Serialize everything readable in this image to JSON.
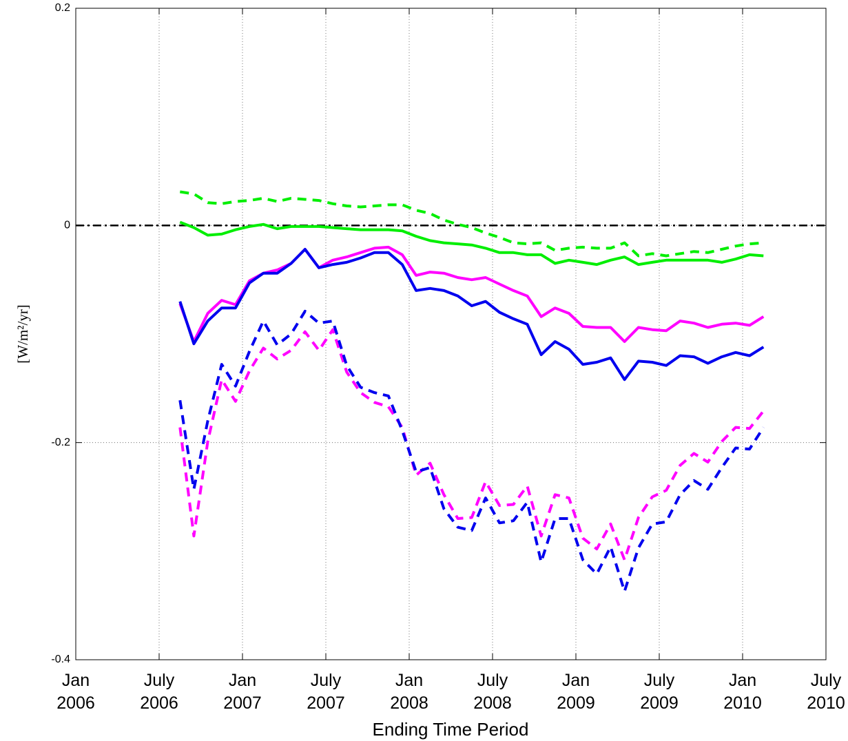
{
  "chart_data": {
    "type": "line",
    "x_label": "Ending Time Period",
    "y_label": "[W/m²/yr]",
    "xlim": [
      "2006-01",
      "2010-07"
    ],
    "xticks": [
      {
        "value": "2006-01",
        "label": [
          "Jan",
          "2006"
        ]
      },
      {
        "value": "2006-07",
        "label": [
          "July",
          "2006"
        ]
      },
      {
        "value": "2007-01",
        "label": [
          "Jan",
          "2007"
        ]
      },
      {
        "value": "2007-07",
        "label": [
          "July",
          "2007"
        ]
      },
      {
        "value": "2008-01",
        "label": [
          "Jan",
          "2008"
        ]
      },
      {
        "value": "2008-07",
        "label": [
          "July",
          "2008"
        ]
      },
      {
        "value": "2009-01",
        "label": [
          "Jan",
          "2009"
        ]
      },
      {
        "value": "2009-07",
        "label": [
          "July",
          "2009"
        ]
      },
      {
        "value": "2010-01",
        "label": [
          "Jan",
          "2010"
        ]
      },
      {
        "value": "2010-07",
        "label": [
          "July",
          "2010"
        ]
      }
    ],
    "ylim": [
      -0.4,
      0.2
    ],
    "yticks": [
      -0.4,
      -0.2,
      0,
      0.2
    ],
    "grid": true,
    "reference_line": {
      "value": 0,
      "color": "#000000",
      "style": "dashdot"
    },
    "x": [
      "2006-08",
      "2006-09",
      "2006-10",
      "2006-11",
      "2006-12",
      "2007-01",
      "2007-02",
      "2007-03",
      "2007-04",
      "2007-05",
      "2007-06",
      "2007-07",
      "2007-08",
      "2007-09",
      "2007-10",
      "2007-11",
      "2007-12",
      "2008-01",
      "2008-02",
      "2008-03",
      "2008-04",
      "2008-05",
      "2008-06",
      "2008-07",
      "2008-08",
      "2008-09",
      "2008-10",
      "2008-11",
      "2008-12",
      "2009-01",
      "2009-02",
      "2009-03",
      "2009-04",
      "2009-05",
      "2009-06",
      "2009-07",
      "2009-08",
      "2009-09",
      "2009-10",
      "2009-11",
      "2009-12",
      "2010-01",
      "2010-02"
    ],
    "series": [
      {
        "color": "#00ee00",
        "dash": "solid",
        "values": [
          0.003,
          -0.002,
          -0.009,
          -0.008,
          -0.004,
          -0.001,
          0.001,
          -0.003,
          -0.001,
          -0.001,
          -0.001,
          -0.002,
          -0.003,
          -0.004,
          -0.004,
          -0.004,
          -0.005,
          -0.01,
          -0.014,
          -0.016,
          -0.017,
          -0.018,
          -0.021,
          -0.025,
          -0.025,
          -0.027,
          -0.027,
          -0.035,
          -0.032,
          -0.034,
          -0.036,
          -0.032,
          -0.029,
          -0.036,
          -0.034,
          -0.032,
          -0.032,
          -0.032,
          -0.032,
          -0.034,
          -0.031,
          -0.027,
          -0.028
        ]
      },
      {
        "color": "#00ee00",
        "dash": "dashed",
        "values": [
          0.031,
          0.029,
          0.021,
          0.02,
          0.022,
          0.023,
          0.025,
          0.022,
          0.025,
          0.024,
          0.023,
          0.02,
          0.018,
          0.017,
          0.018,
          0.019,
          0.019,
          0.014,
          0.011,
          0.005,
          0.001,
          -0.002,
          -0.007,
          -0.011,
          -0.016,
          -0.017,
          -0.016,
          -0.023,
          -0.021,
          -0.02,
          -0.021,
          -0.021,
          -0.016,
          -0.028,
          -0.026,
          -0.028,
          -0.026,
          -0.024,
          -0.025,
          -0.022,
          -0.019,
          -0.017,
          -0.016
        ]
      },
      {
        "color": "#ff00ff",
        "dash": "solid",
        "values": [
          -0.072,
          -0.107,
          -0.081,
          -0.069,
          -0.073,
          -0.051,
          -0.044,
          -0.041,
          -0.035,
          -0.022,
          -0.039,
          -0.032,
          -0.029,
          -0.025,
          -0.021,
          -0.02,
          -0.027,
          -0.046,
          -0.043,
          -0.044,
          -0.048,
          -0.05,
          -0.048,
          -0.054,
          -0.06,
          -0.065,
          -0.084,
          -0.076,
          -0.081,
          -0.093,
          -0.094,
          -0.094,
          -0.107,
          -0.094,
          -0.096,
          -0.097,
          -0.088,
          -0.09,
          -0.094,
          -0.091,
          -0.09,
          -0.092,
          -0.084
        ]
      },
      {
        "color": "#0000ee",
        "dash": "solid",
        "values": [
          -0.07,
          -0.109,
          -0.088,
          -0.076,
          -0.076,
          -0.053,
          -0.044,
          -0.044,
          -0.035,
          -0.022,
          -0.039,
          -0.036,
          -0.034,
          -0.03,
          -0.025,
          -0.025,
          -0.036,
          -0.06,
          -0.058,
          -0.06,
          -0.065,
          -0.074,
          -0.07,
          -0.08,
          -0.086,
          -0.091,
          -0.119,
          -0.107,
          -0.114,
          -0.128,
          -0.126,
          -0.122,
          -0.142,
          -0.125,
          -0.126,
          -0.129,
          -0.12,
          -0.121,
          -0.127,
          -0.121,
          -0.117,
          -0.12,
          -0.112
        ]
      },
      {
        "color": "#ff00ff",
        "dash": "dashed",
        "values": [
          -0.186,
          -0.286,
          -0.199,
          -0.142,
          -0.162,
          -0.134,
          -0.113,
          -0.123,
          -0.115,
          -0.098,
          -0.115,
          -0.096,
          -0.135,
          -0.154,
          -0.163,
          -0.167,
          -0.186,
          -0.23,
          -0.219,
          -0.248,
          -0.27,
          -0.269,
          -0.236,
          -0.258,
          -0.257,
          -0.24,
          -0.286,
          -0.248,
          -0.251,
          -0.288,
          -0.298,
          -0.275,
          -0.308,
          -0.269,
          -0.25,
          -0.244,
          -0.221,
          -0.21,
          -0.218,
          -0.199,
          -0.186,
          -0.187,
          -0.171
        ]
      },
      {
        "color": "#0000ee",
        "dash": "dashed",
        "values": [
          -0.161,
          -0.243,
          -0.18,
          -0.128,
          -0.148,
          -0.116,
          -0.088,
          -0.11,
          -0.1,
          -0.079,
          -0.09,
          -0.088,
          -0.129,
          -0.149,
          -0.154,
          -0.157,
          -0.189,
          -0.227,
          -0.223,
          -0.261,
          -0.278,
          -0.281,
          -0.251,
          -0.274,
          -0.272,
          -0.255,
          -0.31,
          -0.27,
          -0.27,
          -0.308,
          -0.321,
          -0.296,
          -0.337,
          -0.297,
          -0.275,
          -0.273,
          -0.248,
          -0.235,
          -0.243,
          -0.223,
          -0.205,
          -0.206,
          -0.186
        ]
      }
    ]
  }
}
